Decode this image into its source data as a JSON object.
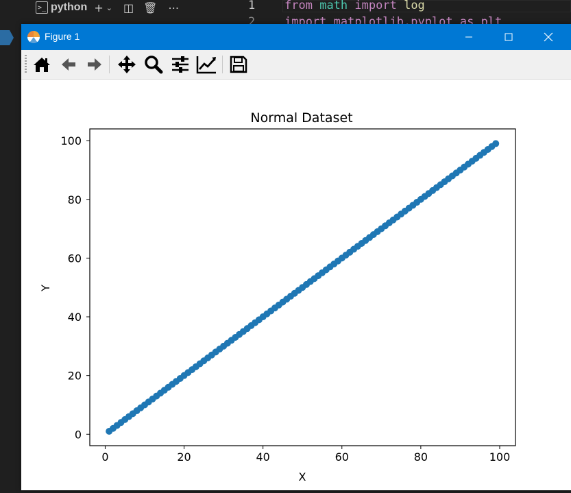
{
  "vscode": {
    "terminal_name": "python",
    "editor": {
      "line1_number": "1",
      "line2_number": "2",
      "line1": {
        "kw1": "from",
        "mod": "math",
        "kw2": "import",
        "name": "log"
      },
      "line2_partial": "import matplotlib.pyplot as plt"
    }
  },
  "window": {
    "title": "Figure 1",
    "minimize_icon": "minimize-icon",
    "maximize_icon": "maximize-icon",
    "close_icon": "close-icon",
    "titlebar_color": "#0078d4"
  },
  "toolbar": {
    "buttons": [
      "home-icon",
      "back-icon",
      "forward-icon",
      "pan-icon",
      "zoom-icon",
      "configure-subplots-icon",
      "edit-axis-icon",
      "save-icon"
    ]
  },
  "chart_data": {
    "type": "scatter",
    "title": "Normal Dataset",
    "xlabel": "X",
    "ylabel": "Y",
    "xlim": [
      -3.9,
      104.0
    ],
    "ylim": [
      -3.9,
      104.0
    ],
    "xticks": [
      0,
      20,
      40,
      60,
      80,
      100
    ],
    "yticks": [
      0,
      20,
      40,
      60,
      80,
      100
    ],
    "series_color": "#1f77b4",
    "x_start": 1,
    "x_end": 99,
    "x": [
      1,
      2,
      3,
      4,
      5,
      6,
      7,
      8,
      9,
      10,
      11,
      12,
      13,
      14,
      15,
      16,
      17,
      18,
      19,
      20,
      21,
      22,
      23,
      24,
      25,
      26,
      27,
      28,
      29,
      30,
      31,
      32,
      33,
      34,
      35,
      36,
      37,
      38,
      39,
      40,
      41,
      42,
      43,
      44,
      45,
      46,
      47,
      48,
      49,
      50,
      51,
      52,
      53,
      54,
      55,
      56,
      57,
      58,
      59,
      60,
      61,
      62,
      63,
      64,
      65,
      66,
      67,
      68,
      69,
      70,
      71,
      72,
      73,
      74,
      75,
      76,
      77,
      78,
      79,
      80,
      81,
      82,
      83,
      84,
      85,
      86,
      87,
      88,
      89,
      90,
      91,
      92,
      93,
      94,
      95,
      96,
      97,
      98,
      99
    ],
    "y": [
      1,
      2,
      3,
      4,
      5,
      6,
      7,
      8,
      9,
      10,
      11,
      12,
      13,
      14,
      15,
      16,
      17,
      18,
      19,
      20,
      21,
      22,
      23,
      24,
      25,
      26,
      27,
      28,
      29,
      30,
      31,
      32,
      33,
      34,
      35,
      36,
      37,
      38,
      39,
      40,
      41,
      42,
      43,
      44,
      45,
      46,
      47,
      48,
      49,
      50,
      51,
      52,
      53,
      54,
      55,
      56,
      57,
      58,
      59,
      60,
      61,
      62,
      63,
      64,
      65,
      66,
      67,
      68,
      69,
      70,
      71,
      72,
      73,
      74,
      75,
      76,
      77,
      78,
      79,
      80,
      81,
      82,
      83,
      84,
      85,
      86,
      87,
      88,
      89,
      90,
      91,
      92,
      93,
      94,
      95,
      96,
      97,
      98,
      99
    ]
  }
}
